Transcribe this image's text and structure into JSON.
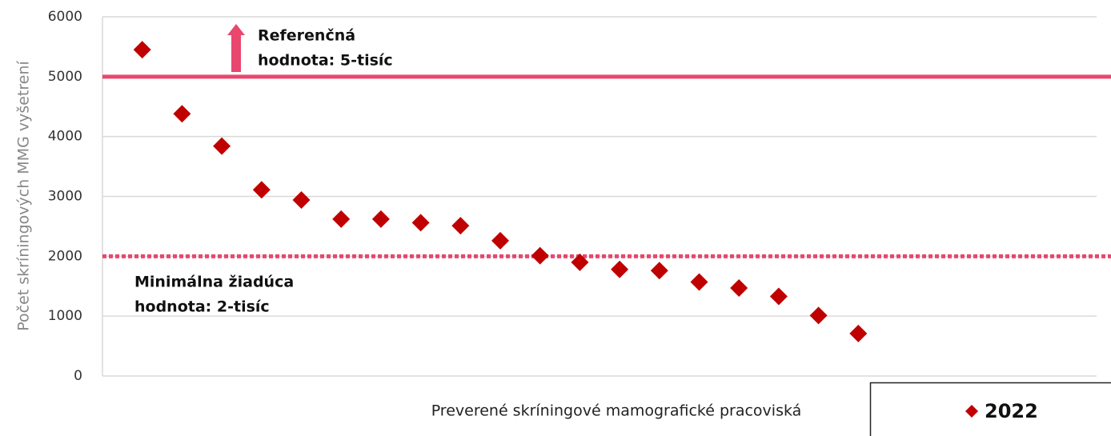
{
  "chart_data": {
    "type": "scatter",
    "x_label": "Preverené skríningové mamografické pracoviská",
    "y_label": "Počet skríningových MMG vyšetrení",
    "categories": [
      null,
      null,
      null,
      null,
      null,
      null,
      null,
      null,
      null,
      null,
      null,
      null,
      null,
      null,
      null,
      null,
      null,
      null,
      null
    ],
    "series": [
      {
        "name": "2022",
        "color": "#c00000",
        "values": [
          5450,
          4380,
          3840,
          3110,
          2940,
          2620,
          2620,
          2560,
          2510,
          2260,
          2010,
          1900,
          1780,
          1760,
          1570,
          1470,
          1330,
          1010,
          710
        ]
      }
    ],
    "ylim": [
      0,
      6000
    ],
    "yticks": [
      0,
      1000,
      2000,
      3000,
      4000,
      5000,
      6000
    ],
    "grid": true,
    "reference_lines": [
      {
        "value": 5000,
        "style": "solid",
        "color": "#e8476e",
        "label": [
          "Referenčná",
          "hodnota: 5-tisíc"
        ]
      },
      {
        "value": 2000,
        "style": "dotted",
        "color": "#e8476e",
        "label": [
          "Minimálna žiadúca",
          "hodnota: 2-tisíc"
        ]
      }
    ],
    "legend": "bottom-right"
  }
}
